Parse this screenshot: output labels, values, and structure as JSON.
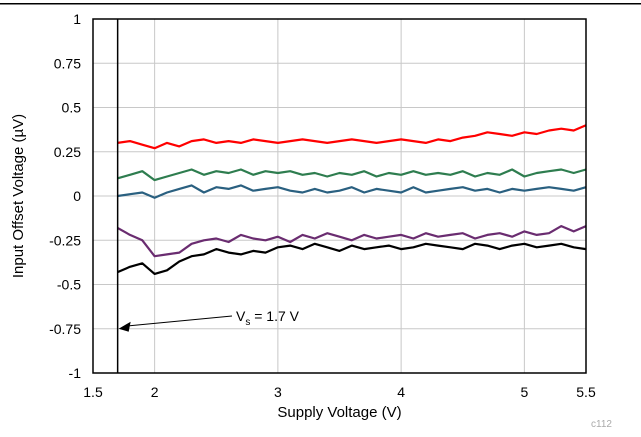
{
  "chart_data": {
    "type": "line",
    "xlabel": "Supply Voltage (V)",
    "ylabel": "Input Offset Voltage (µV)",
    "xlim": [
      1.5,
      5.5
    ],
    "ylim": [
      -1,
      1
    ],
    "x_ticks": [
      "1.5",
      "2",
      "3",
      "4",
      "5",
      "5.5"
    ],
    "y_ticks": [
      "1",
      "0.75",
      "0.5",
      "0.25",
      "0",
      "-0.25",
      "-0.5",
      "-0.75",
      "-1"
    ],
    "grid": true,
    "legend": "none",
    "annotation": {
      "text": "V",
      "subscript": "s",
      "suffix": " = 1.7 V",
      "x": 1.7
    },
    "figure_id": "c112",
    "x": [
      1.7,
      1.8,
      1.9,
      2.0,
      2.1,
      2.2,
      2.3,
      2.4,
      2.5,
      2.6,
      2.7,
      2.8,
      2.9,
      3.0,
      3.1,
      3.2,
      3.3,
      3.4,
      3.5,
      3.6,
      3.7,
      3.8,
      3.9,
      4.0,
      4.1,
      4.2,
      4.3,
      4.4,
      4.5,
      4.6,
      4.7,
      4.8,
      4.9,
      5.0,
      5.1,
      5.2,
      5.3,
      5.4,
      5.5
    ],
    "series": [
      {
        "color": "#ff0000",
        "values": [
          0.3,
          0.31,
          0.29,
          0.27,
          0.3,
          0.28,
          0.31,
          0.32,
          0.3,
          0.31,
          0.3,
          0.32,
          0.31,
          0.3,
          0.31,
          0.32,
          0.31,
          0.3,
          0.31,
          0.32,
          0.31,
          0.3,
          0.31,
          0.32,
          0.31,
          0.3,
          0.32,
          0.31,
          0.33,
          0.34,
          0.36,
          0.35,
          0.34,
          0.36,
          0.35,
          0.37,
          0.38,
          0.37,
          0.4
        ]
      },
      {
        "color": "#2e7d4f",
        "values": [
          0.1,
          0.12,
          0.14,
          0.09,
          0.11,
          0.13,
          0.15,
          0.12,
          0.14,
          0.13,
          0.15,
          0.12,
          0.14,
          0.13,
          0.14,
          0.12,
          0.13,
          0.11,
          0.13,
          0.12,
          0.14,
          0.11,
          0.13,
          0.12,
          0.14,
          0.12,
          0.13,
          0.12,
          0.14,
          0.11,
          0.13,
          0.12,
          0.15,
          0.11,
          0.13,
          0.14,
          0.15,
          0.13,
          0.15
        ]
      },
      {
        "color": "#2a6080",
        "values": [
          0.0,
          0.01,
          0.02,
          -0.01,
          0.02,
          0.04,
          0.06,
          0.02,
          0.05,
          0.04,
          0.06,
          0.03,
          0.04,
          0.05,
          0.03,
          0.02,
          0.04,
          0.02,
          0.03,
          0.05,
          0.02,
          0.04,
          0.03,
          0.02,
          0.05,
          0.02,
          0.03,
          0.04,
          0.05,
          0.03,
          0.04,
          0.02,
          0.04,
          0.03,
          0.04,
          0.05,
          0.04,
          0.03,
          0.05
        ]
      },
      {
        "color": "#6a2c70",
        "values": [
          -0.18,
          -0.22,
          -0.25,
          -0.34,
          -0.33,
          -0.32,
          -0.27,
          -0.25,
          -0.24,
          -0.26,
          -0.22,
          -0.24,
          -0.25,
          -0.23,
          -0.26,
          -0.22,
          -0.24,
          -0.21,
          -0.23,
          -0.25,
          -0.22,
          -0.24,
          -0.23,
          -0.22,
          -0.24,
          -0.21,
          -0.23,
          -0.22,
          -0.21,
          -0.24,
          -0.22,
          -0.21,
          -0.23,
          -0.2,
          -0.22,
          -0.21,
          -0.17,
          -0.2,
          -0.17
        ]
      },
      {
        "color": "#000000",
        "values": [
          -0.43,
          -0.4,
          -0.38,
          -0.44,
          -0.42,
          -0.37,
          -0.34,
          -0.33,
          -0.3,
          -0.32,
          -0.33,
          -0.31,
          -0.32,
          -0.29,
          -0.28,
          -0.3,
          -0.27,
          -0.29,
          -0.31,
          -0.28,
          -0.3,
          -0.29,
          -0.28,
          -0.3,
          -0.29,
          -0.27,
          -0.28,
          -0.29,
          -0.3,
          -0.27,
          -0.28,
          -0.3,
          -0.28,
          -0.27,
          -0.29,
          -0.28,
          -0.27,
          -0.29,
          -0.3
        ]
      }
    ]
  }
}
